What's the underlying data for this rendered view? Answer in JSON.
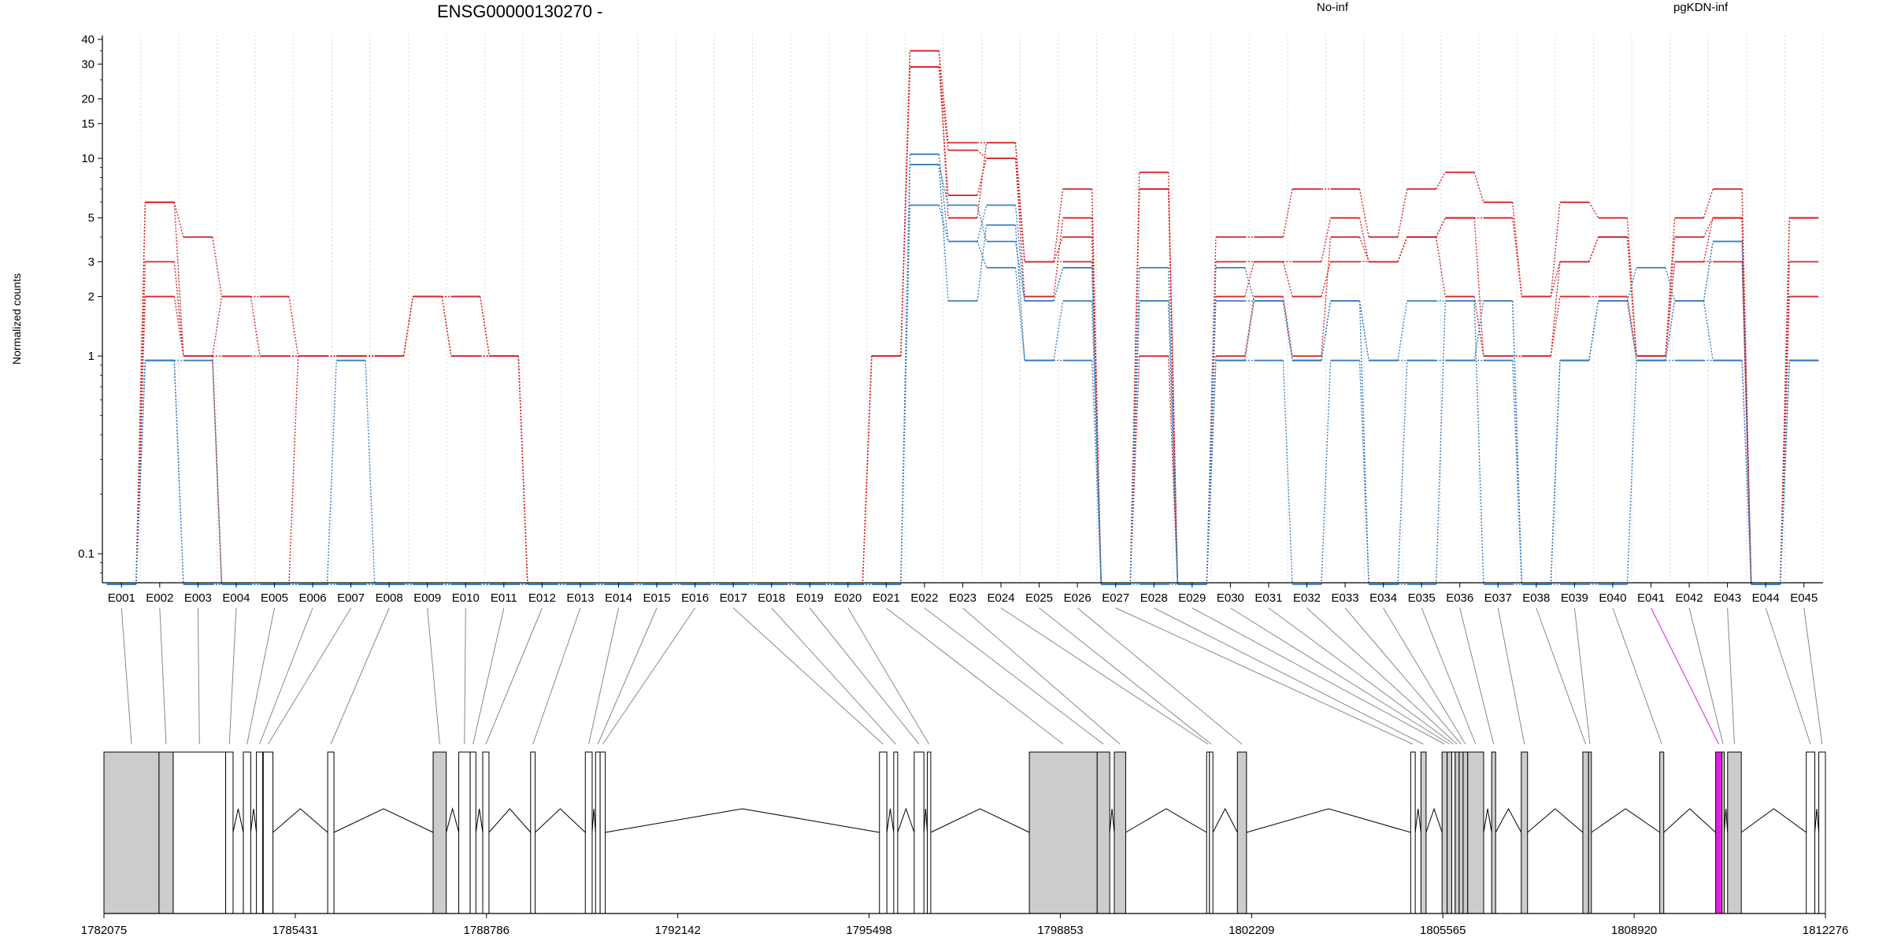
{
  "chart_data": {
    "type": "line",
    "title": "ENSG00000130270 -",
    "ylabel": "Normalized counts",
    "yscale": "log",
    "ylim": [
      0.07,
      40
    ],
    "yticks": [
      {
        "v": 0.1,
        "label": "0.1"
      },
      {
        "v": 1,
        "label": "1"
      },
      {
        "v": 2,
        "label": "2"
      },
      {
        "v": 3,
        "label": "3"
      },
      {
        "v": 5,
        "label": "5"
      },
      {
        "v": 10,
        "label": "10"
      },
      {
        "v": 15,
        "label": "15"
      },
      {
        "v": 20,
        "label": "20"
      },
      {
        "v": 30,
        "label": "30"
      },
      {
        "v": 40,
        "label": "40"
      }
    ],
    "grid": "vertical dotted",
    "legend": [
      {
        "name": "No-inf",
        "color": "#d62728"
      },
      {
        "name": "pgKDN-inf",
        "color": "#3a7ebf"
      }
    ],
    "categories": [
      "E001",
      "E002",
      "E003",
      "E004",
      "E005",
      "E006",
      "E007",
      "E008",
      "E009",
      "E010",
      "E011",
      "E012",
      "E013",
      "E014",
      "E015",
      "E016",
      "E017",
      "E018",
      "E019",
      "E020",
      "E021",
      "E022",
      "E023",
      "E024",
      "E025",
      "E026",
      "E027",
      "E028",
      "E029",
      "E030",
      "E031",
      "E032",
      "E033",
      "E034",
      "E035",
      "E036",
      "E037",
      "E038",
      "E039",
      "E040",
      "E041",
      "E042",
      "E043",
      "E044",
      "E045"
    ],
    "series": [
      {
        "group": "No-inf",
        "color": "#d62728",
        "values": [
          0.07,
          6,
          4,
          2,
          2,
          1,
          1,
          1,
          2,
          2,
          1,
          0.07,
          0.07,
          0.07,
          0.07,
          0.07,
          0.07,
          0.07,
          0.07,
          0.07,
          1,
          35,
          12,
          12,
          3,
          7,
          0.07,
          8.5,
          0.07,
          4,
          4,
          7,
          7,
          4,
          7,
          8.5,
          6,
          2,
          6,
          5,
          1,
          5,
          7,
          0.07,
          5
        ]
      },
      {
        "group": "No-inf",
        "color": "#d62728",
        "values": [
          0.07,
          3,
          1,
          1,
          1,
          1,
          1,
          1,
          2,
          1,
          1,
          0.07,
          0.07,
          0.07,
          0.07,
          0.07,
          0.07,
          0.07,
          0.07,
          0.07,
          1,
          29,
          11,
          10,
          2,
          5,
          0.07,
          7,
          0.07,
          3,
          3,
          3,
          5,
          3,
          4,
          5,
          5,
          2,
          3,
          4,
          1,
          4,
          5,
          0.07,
          3
        ]
      },
      {
        "group": "No-inf",
        "color": "#d62728",
        "values": [
          0.07,
          2,
          1,
          0.07,
          0.07,
          1,
          1,
          1,
          2,
          1,
          1,
          0.07,
          0.07,
          0.07,
          0.07,
          0.07,
          0.07,
          0.07,
          0.07,
          0.07,
          1,
          29,
          6.5,
          10,
          3,
          4,
          0.07,
          1,
          0.07,
          2,
          3,
          2,
          3,
          3,
          4,
          2,
          1,
          1,
          2,
          2,
          1,
          3,
          3,
          0.07,
          2
        ]
      },
      {
        "group": "No-inf",
        "color": "#d62728",
        "values": [
          0.07,
          6,
          1,
          2,
          1,
          1,
          1,
          1,
          2,
          2,
          1,
          0.07,
          0.07,
          0.07,
          0.07,
          0.07,
          0.07,
          0.07,
          0.07,
          0.07,
          1,
          35,
          5,
          12,
          3,
          3,
          0.07,
          7,
          0.07,
          1,
          2,
          1,
          4,
          3,
          4,
          5,
          1,
          1,
          3,
          4,
          1,
          3,
          5,
          0.07,
          5
        ]
      },
      {
        "group": "pgKDN-inf",
        "color": "#3a7ebf",
        "values": [
          0.07,
          0.95,
          0.95,
          0.07,
          0.07,
          0.07,
          0.95,
          0.07,
          0.07,
          0.07,
          0.07,
          0.07,
          0.07,
          0.07,
          0.07,
          0.07,
          0.07,
          0.07,
          0.07,
          0.07,
          0.07,
          10.5,
          3.8,
          5.8,
          1.9,
          2.8,
          0.07,
          2.8,
          0.07,
          2.8,
          1.9,
          0.95,
          1.9,
          0.95,
          1.9,
          1.9,
          1.9,
          0.07,
          0.95,
          1.9,
          2.8,
          1.9,
          3.8,
          0.07,
          0.95
        ]
      },
      {
        "group": "pgKDN-inf",
        "color": "#3a7ebf",
        "values": [
          0.07,
          0.95,
          0.07,
          0.07,
          0.07,
          0.07,
          0.07,
          0.07,
          0.07,
          0.07,
          0.07,
          0.07,
          0.07,
          0.07,
          0.07,
          0.07,
          0.07,
          0.07,
          0.07,
          0.07,
          0.07,
          9.3,
          1.9,
          4.6,
          0.95,
          1.9,
          0.07,
          1.9,
          0.07,
          1.9,
          1.9,
          0.95,
          1.9,
          0.07,
          0.95,
          0.95,
          0.95,
          0.07,
          0.95,
          1.9,
          0.95,
          0.95,
          0.95,
          0.07,
          0.95
        ]
      },
      {
        "group": "pgKDN-inf",
        "color": "#3a7ebf",
        "values": [
          0.07,
          0.95,
          0.07,
          0.07,
          0.07,
          0.07,
          0.07,
          0.07,
          0.07,
          0.07,
          0.07,
          0.07,
          0.07,
          0.07,
          0.07,
          0.07,
          0.07,
          0.07,
          0.07,
          0.07,
          0.07,
          5.8,
          3.8,
          2.8,
          0.95,
          0.95,
          0.07,
          0.07,
          0.07,
          0.95,
          0.95,
          0.07,
          0.95,
          0.07,
          0.07,
          1.9,
          0.07,
          0.07,
          0.07,
          0.07,
          0.95,
          1.9,
          0.95,
          0.07,
          0.95
        ]
      },
      {
        "group": "pgKDN-inf",
        "color": "#3a7ebf",
        "values": [
          0.07,
          0.95,
          0.07,
          0.07,
          0.07,
          0.07,
          0.07,
          0.07,
          0.07,
          0.07,
          0.07,
          0.07,
          0.07,
          0.07,
          0.07,
          0.07,
          0.07,
          0.07,
          0.07,
          0.07,
          0.07,
          9.3,
          5.8,
          3.8,
          1.9,
          2.8,
          0.07,
          1.9,
          0.07,
          0.95,
          1.9,
          0.95,
          1.9,
          0.95,
          0.95,
          0.95,
          1.9,
          0.07,
          0.95,
          1.9,
          0.95,
          1.9,
          3.8,
          0.07,
          0.95
        ]
      }
    ],
    "gene_model": {
      "coordinate_ticks": [
        "1782075",
        "1785431",
        "1788786",
        "1792142",
        "1795498",
        "1798853",
        "1802209",
        "1805565",
        "1808920",
        "1812276"
      ],
      "xlim": [
        1782075,
        1812276
      ],
      "highlighted_exon": "E041",
      "highlight_color": "#e020e0",
      "exons": [
        {
          "id": "E001",
          "start": 1782075,
          "end": 1783041,
          "coding": true
        },
        {
          "id": "E002",
          "start": 1783041,
          "end": 1783290,
          "coding": true
        },
        {
          "id": "E003",
          "start": 1783290,
          "end": 1784210,
          "coding": false
        },
        {
          "id": "E004",
          "start": 1784210,
          "end": 1784340,
          "coding": false
        },
        {
          "id": "E005",
          "start": 1784520,
          "end": 1784650,
          "coding": false
        },
        {
          "id": "E006",
          "start": 1784750,
          "end": 1784860,
          "coding": false
        },
        {
          "id": "E007",
          "start": 1784870,
          "end": 1785040,
          "coding": false
        },
        {
          "id": "E008",
          "start": 1786000,
          "end": 1786110,
          "coding": false
        },
        {
          "id": "E009",
          "start": 1787850,
          "end": 1788080,
          "coding": true
        },
        {
          "id": "E010",
          "start": 1788300,
          "end": 1788500,
          "coding": false
        },
        {
          "id": "E011",
          "start": 1788500,
          "end": 1788600,
          "coding": false
        },
        {
          "id": "E012",
          "start": 1788720,
          "end": 1788830,
          "coding": false
        },
        {
          "id": "E013",
          "start": 1789560,
          "end": 1789640,
          "coding": false
        },
        {
          "id": "E014",
          "start": 1790520,
          "end": 1790640,
          "coding": false
        },
        {
          "id": "E015",
          "start": 1790700,
          "end": 1790780,
          "coding": false
        },
        {
          "id": "E016",
          "start": 1790780,
          "end": 1790870,
          "coding": false
        },
        {
          "id": "E017",
          "start": 1795680,
          "end": 1795810,
          "coding": false
        },
        {
          "id": "E018",
          "start": 1795930,
          "end": 1796000,
          "coding": false
        },
        {
          "id": "E019",
          "start": 1796290,
          "end": 1796460,
          "coding": false
        },
        {
          "id": "E020",
          "start": 1796520,
          "end": 1796580,
          "coding": false
        },
        {
          "id": "E021",
          "start": 1798310,
          "end": 1799500,
          "coding": true
        },
        {
          "id": "E022",
          "start": 1799500,
          "end": 1799720,
          "coding": true
        },
        {
          "id": "E023",
          "start": 1799800,
          "end": 1800000,
          "coding": true
        },
        {
          "id": "E024",
          "start": 1801420,
          "end": 1801470,
          "coding": false
        },
        {
          "id": "E025",
          "start": 1801470,
          "end": 1801530,
          "coding": false
        },
        {
          "id": "E026",
          "start": 1801960,
          "end": 1802120,
          "coding": true
        },
        {
          "id": "E027",
          "start": 1805000,
          "end": 1805080,
          "coding": false
        },
        {
          "id": "E028",
          "start": 1805180,
          "end": 1805270,
          "coding": true
        },
        {
          "id": "E029",
          "start": 1805550,
          "end": 1805640,
          "coding": true
        },
        {
          "id": "E030",
          "start": 1805640,
          "end": 1805720,
          "coding": true
        },
        {
          "id": "E031",
          "start": 1805720,
          "end": 1805780,
          "coding": false
        },
        {
          "id": "E032",
          "start": 1805780,
          "end": 1805850,
          "coding": true
        },
        {
          "id": "E033",
          "start": 1805850,
          "end": 1805920,
          "coding": true
        },
        {
          "id": "E034",
          "start": 1805920,
          "end": 1806000,
          "coding": true
        },
        {
          "id": "E035",
          "start": 1806000,
          "end": 1806280,
          "coding": true
        },
        {
          "id": "E036",
          "start": 1806420,
          "end": 1806490,
          "coding": true
        },
        {
          "id": "E037",
          "start": 1806940,
          "end": 1807050,
          "coding": true
        },
        {
          "id": "E038",
          "start": 1808020,
          "end": 1808120,
          "coding": true
        },
        {
          "id": "E039",
          "start": 1808120,
          "end": 1808170,
          "coding": true
        },
        {
          "id": "E040",
          "start": 1809370,
          "end": 1809440,
          "coding": true
        },
        {
          "id": "E041",
          "start": 1810350,
          "end": 1810460,
          "coding": true
        },
        {
          "id": "E042",
          "start": 1810460,
          "end": 1810500,
          "coding": true
        },
        {
          "id": "E043",
          "start": 1810560,
          "end": 1810800,
          "coding": true
        },
        {
          "id": "E044",
          "start": 1811940,
          "end": 1812090,
          "coding": false
        },
        {
          "id": "E045",
          "start": 1812160,
          "end": 1812276,
          "coding": false
        }
      ]
    }
  }
}
